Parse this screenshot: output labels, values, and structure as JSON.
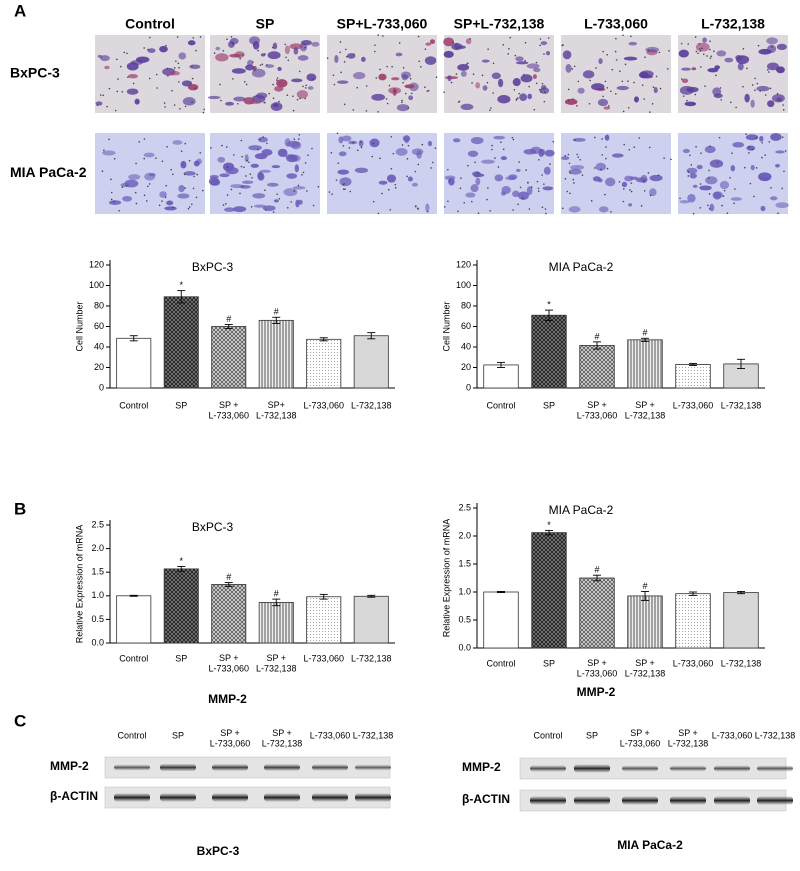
{
  "figure": {
    "panel_labels": [
      "A",
      "B",
      "C"
    ],
    "micrographs": {
      "columns": [
        "Control",
        "SP",
        "SP+L-733,060",
        "SP+L-732,138",
        "L-733,060",
        "L-732,138"
      ],
      "rows": [
        "BxPC-3",
        "MIA PaCa-2"
      ]
    },
    "blots": [
      {
        "columns": [
          "Control",
          "SP",
          "SP +\nL-733,060",
          "SP +\nL-732,138",
          "L-733,060",
          "L-732,138"
        ],
        "rows": [
          "MMP-2",
          "β-ACTIN"
        ],
        "caption": "BxPC-3"
      },
      {
        "columns": [
          "Control",
          "SP",
          "SP +\nL-733,060",
          "SP +\nL-732,138",
          "L-733,060",
          "L-732,138"
        ],
        "rows": [
          "MMP-2",
          "β-ACTIN"
        ],
        "caption": "MIA PaCa-2"
      }
    ]
  },
  "chart_data": [
    {
      "type": "bar",
      "title": "BxPC-3",
      "y_label": "Cell Number",
      "categories": [
        "Control",
        "SP",
        "SP +\nL-733,060",
        "SP+\nL-732,138",
        "L-733,060",
        "L-732,138"
      ],
      "values": [
        48.5,
        89,
        60,
        66,
        47.5,
        51
      ],
      "errors": [
        2.5,
        6,
        2,
        3,
        1.5,
        3
      ],
      "value_annotations": [
        null,
        "*",
        "#",
        "#",
        null,
        null
      ],
      "ylim": [
        0,
        120
      ],
      "yticks": [
        0,
        20,
        40,
        60,
        80,
        100,
        120
      ]
    },
    {
      "type": "bar",
      "title": "MIA PaCa-2",
      "y_label": "Cell Number",
      "categories": [
        "Control",
        "SP",
        "SP +\nL-733,060",
        "SP +\nL-732,138",
        "L-733,060",
        "L-732,138"
      ],
      "values": [
        22.5,
        71,
        41.5,
        47,
        23,
        23.5
      ],
      "errors": [
        2.5,
        5,
        3.5,
        1.5,
        1,
        4.5
      ],
      "value_annotations": [
        null,
        "*",
        "#",
        "#",
        null,
        null
      ],
      "ylim": [
        0,
        120
      ],
      "yticks": [
        0,
        20,
        40,
        60,
        80,
        100,
        120
      ]
    },
    {
      "type": "bar",
      "title": "BxPC-3",
      "y_label": "Relative Expression of mRNA",
      "x_label": "MMP-2",
      "categories": [
        "Control",
        "SP",
        "SP +\nL-733,060",
        "SP +\nL-732,138",
        "L-733,060",
        "L-732,138"
      ],
      "values": [
        1.0,
        1.57,
        1.24,
        0.86,
        0.98,
        0.99
      ],
      "errors": [
        0.01,
        0.05,
        0.04,
        0.07,
        0.05,
        0.02
      ],
      "value_annotations": [
        null,
        "*",
        "#",
        "#",
        null,
        null
      ],
      "ylim": [
        0,
        2.5
      ],
      "yticks": [
        {
          "value": 0,
          "label": "0.0"
        },
        0.5,
        {
          "value": 1,
          "label": "1.0"
        },
        1.5,
        {
          "value": 2,
          "label": "2.0"
        },
        2.5
      ]
    },
    {
      "type": "bar",
      "title": "MIA PaCa-2",
      "y_label": "Relative Expression of mRNA",
      "x_label": "MMP-2",
      "categories": [
        "Control",
        "SP",
        "SP +\nL-733,060",
        "SP +\nL-732,138",
        "L-733,060",
        "L-732,138"
      ],
      "values": [
        1.0,
        2.06,
        1.25,
        0.93,
        0.97,
        0.99
      ],
      "errors": [
        0.01,
        0.04,
        0.05,
        0.08,
        0.03,
        0.02
      ],
      "value_annotations": [
        null,
        "*",
        "#",
        "#",
        null,
        null
      ],
      "ylim": [
        0,
        2.5
      ],
      "yticks": [
        {
          "value": 0,
          "label": "0.0"
        },
        0.5,
        {
          "value": 1,
          "label": "1.0"
        },
        1.5,
        {
          "value": 2,
          "label": "2.0"
        },
        2.5
      ]
    }
  ]
}
